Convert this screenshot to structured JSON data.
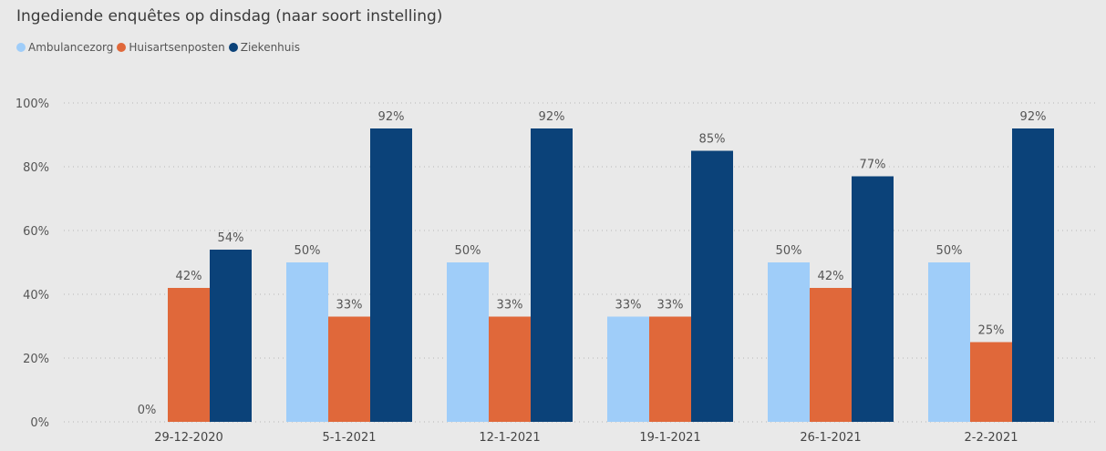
{
  "chart_data": {
    "type": "bar",
    "title": "Ingediende enquêtes op dinsdag (naar soort instelling)",
    "categories": [
      "29-12-2020",
      "5-1-2021",
      "12-1-2021",
      "19-1-2021",
      "26-1-2021",
      "2-2-2021"
    ],
    "series": [
      {
        "name": "Ambulancezorg",
        "color": "#9fcdf9",
        "values": [
          0,
          50,
          50,
          33,
          50,
          50
        ],
        "labels": [
          "0%",
          "50%",
          "50%",
          "33%",
          "50%",
          "50%"
        ]
      },
      {
        "name": "Huisartsenposten",
        "color": "#e0683a",
        "values": [
          42,
          33,
          33,
          33,
          42,
          25
        ],
        "labels": [
          "42%",
          "33%",
          "33%",
          "33%",
          "42%",
          "25%"
        ]
      },
      {
        "name": "Ziekenhuis",
        "color": "#0b4279",
        "values": [
          54,
          92,
          92,
          85,
          77,
          92
        ],
        "labels": [
          "54%",
          "92%",
          "92%",
          "85%",
          "77%",
          "92%"
        ]
      }
    ],
    "ylim": [
      0,
      100
    ],
    "yticks": [
      0,
      20,
      40,
      60,
      80,
      100
    ],
    "ytick_labels": [
      "0%",
      "20%",
      "40%",
      "60%",
      "80%",
      "100%"
    ],
    "xlabel": "",
    "ylabel": "",
    "grid": true,
    "legend_position": "top-left"
  }
}
